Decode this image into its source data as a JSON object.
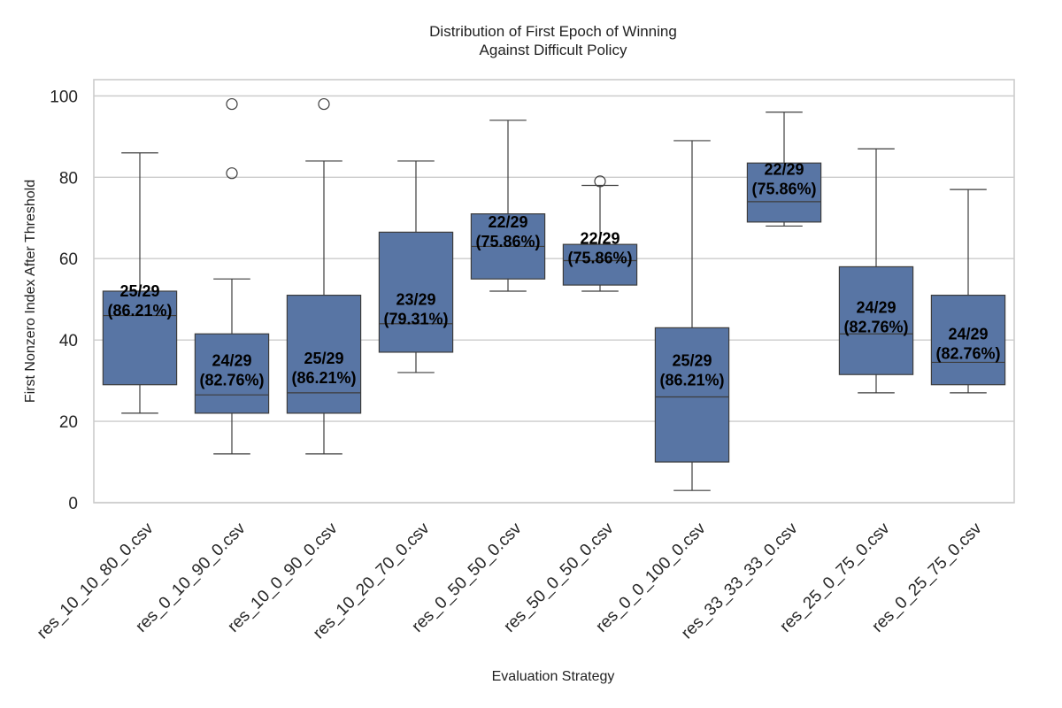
{
  "chart_data": {
    "type": "box",
    "title": [
      "Distribution of First Epoch of Winning",
      "Against Difficult Policy"
    ],
    "xlabel": "Evaluation Strategy",
    "ylabel": "First Nonzero Index After Threshold",
    "ylim": [
      0,
      104
    ],
    "yticks": [
      0,
      20,
      40,
      60,
      80,
      100
    ],
    "grid": "horizontal",
    "box_color": "#5875a4",
    "line_color": "#3d3d3d",
    "categories": [
      "res_10_10_80_0.csv",
      "res_0_10_90_0.csv",
      "res_10_0_90_0.csv",
      "res_10_20_70_0.csv",
      "res_0_50_50_0.csv",
      "res_50_0_50_0.csv",
      "res_0_0_100_0.csv",
      "res_33_33_33_0.csv",
      "res_25_0_75_0.csv",
      "res_0_25_75_0.csv"
    ],
    "boxes": [
      {
        "whisker_low": 22,
        "q1": 29,
        "median": 46,
        "q3": 52,
        "whisker_high": 86,
        "outliers": []
      },
      {
        "whisker_low": 12,
        "q1": 22,
        "median": 26.5,
        "q3": 41.5,
        "whisker_high": 55,
        "outliers": [
          81,
          98
        ]
      },
      {
        "whisker_low": 12,
        "q1": 22,
        "median": 27,
        "q3": 51,
        "whisker_high": 84,
        "outliers": [
          98
        ]
      },
      {
        "whisker_low": 32,
        "q1": 37,
        "median": 44,
        "q3": 66.5,
        "whisker_high": 84,
        "outliers": []
      },
      {
        "whisker_low": 52,
        "q1": 55,
        "median": 63,
        "q3": 71,
        "whisker_high": 94,
        "outliers": []
      },
      {
        "whisker_low": 52,
        "q1": 53.5,
        "median": 59.5,
        "q3": 63.5,
        "whisker_high": 78,
        "outliers": [
          79
        ]
      },
      {
        "whisker_low": 3,
        "q1": 10,
        "median": 26,
        "q3": 43,
        "whisker_high": 89,
        "outliers": []
      },
      {
        "whisker_low": 68,
        "q1": 69,
        "median": 74,
        "q3": 83.5,
        "whisker_high": 96,
        "outliers": []
      },
      {
        "whisker_low": 27,
        "q1": 31.5,
        "median": 41.5,
        "q3": 58,
        "whisker_high": 87,
        "outliers": []
      },
      {
        "whisker_low": 27,
        "q1": 29,
        "median": 34.5,
        "q3": 51,
        "whisker_high": 77,
        "outliers": []
      }
    ],
    "annotations": [
      {
        "count": "25/29",
        "pct": "(86.21%)",
        "y": 50
      },
      {
        "count": "24/29",
        "pct": "(82.76%)",
        "y": 33
      },
      {
        "count": "25/29",
        "pct": "(86.21%)",
        "y": 33.5
      },
      {
        "count": "23/29",
        "pct": "(79.31%)",
        "y": 48
      },
      {
        "count": "22/29",
        "pct": "(75.86%)",
        "y": 67
      },
      {
        "count": "22/29",
        "pct": "(75.86%)",
        "y": 63
      },
      {
        "count": "25/29",
        "pct": "(86.21%)",
        "y": 33
      },
      {
        "count": "22/29",
        "pct": "(75.86%)",
        "y": 80
      },
      {
        "count": "24/29",
        "pct": "(82.76%)",
        "y": 46
      },
      {
        "count": "24/29",
        "pct": "(82.76%)",
        "y": 39.5
      }
    ]
  }
}
